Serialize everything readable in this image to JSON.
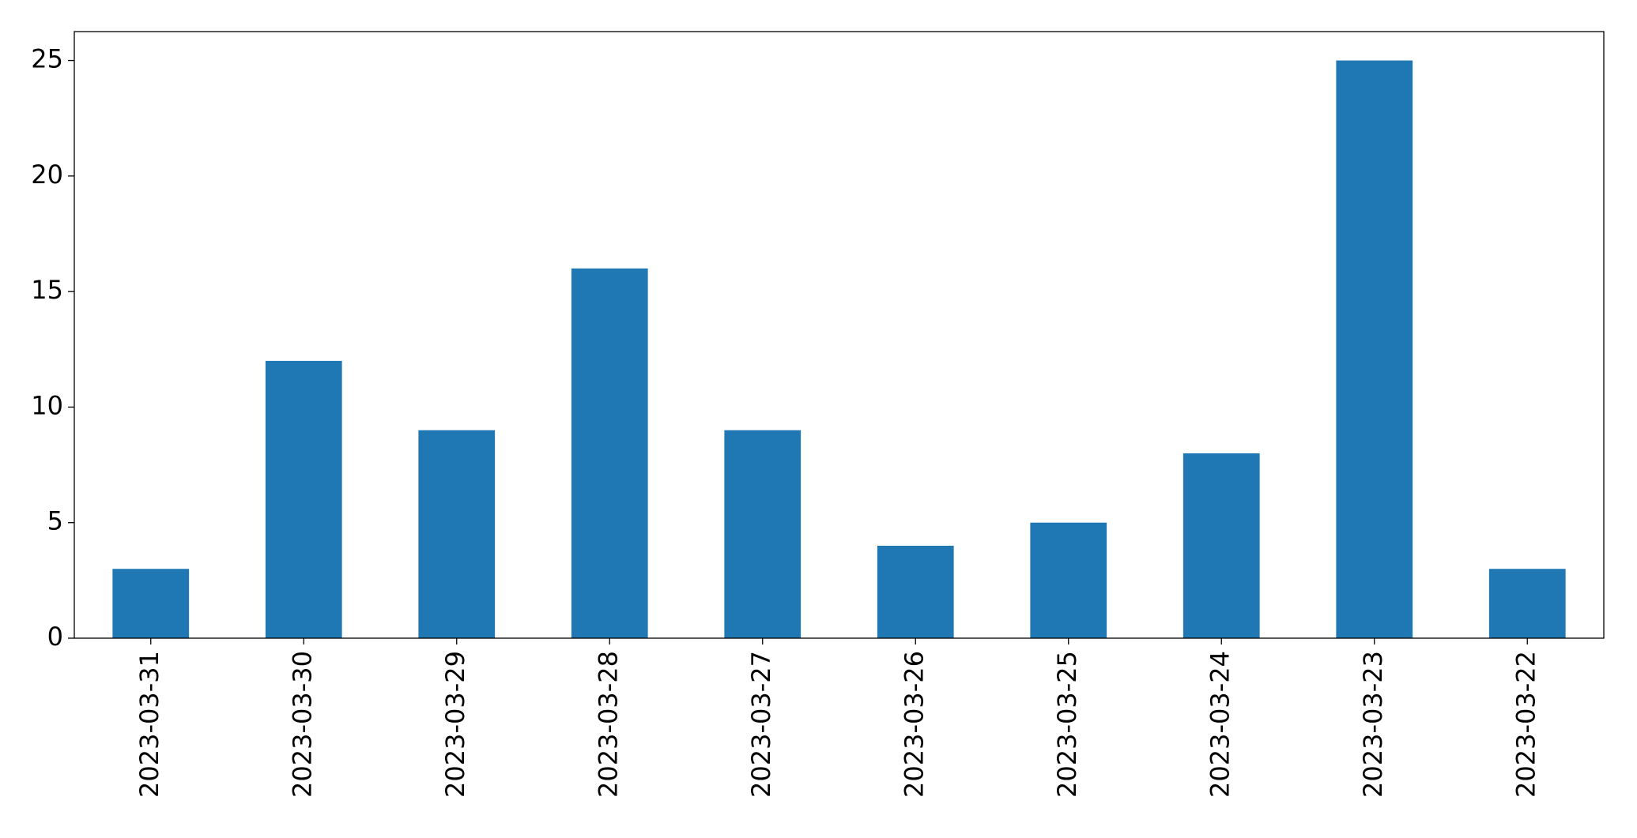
{
  "chart_data": {
    "type": "bar",
    "categories": [
      "2023-03-31",
      "2023-03-30",
      "2023-03-29",
      "2023-03-28",
      "2023-03-27",
      "2023-03-26",
      "2023-03-25",
      "2023-03-24",
      "2023-03-23",
      "2023-03-22"
    ],
    "values": [
      3,
      12,
      9,
      16,
      9,
      4,
      5,
      8,
      25,
      3
    ],
    "color": "#1f77b4",
    "ylim": [
      0,
      26.25
    ],
    "yticks": [
      0,
      5,
      10,
      15,
      20,
      25
    ],
    "grid": false
  }
}
